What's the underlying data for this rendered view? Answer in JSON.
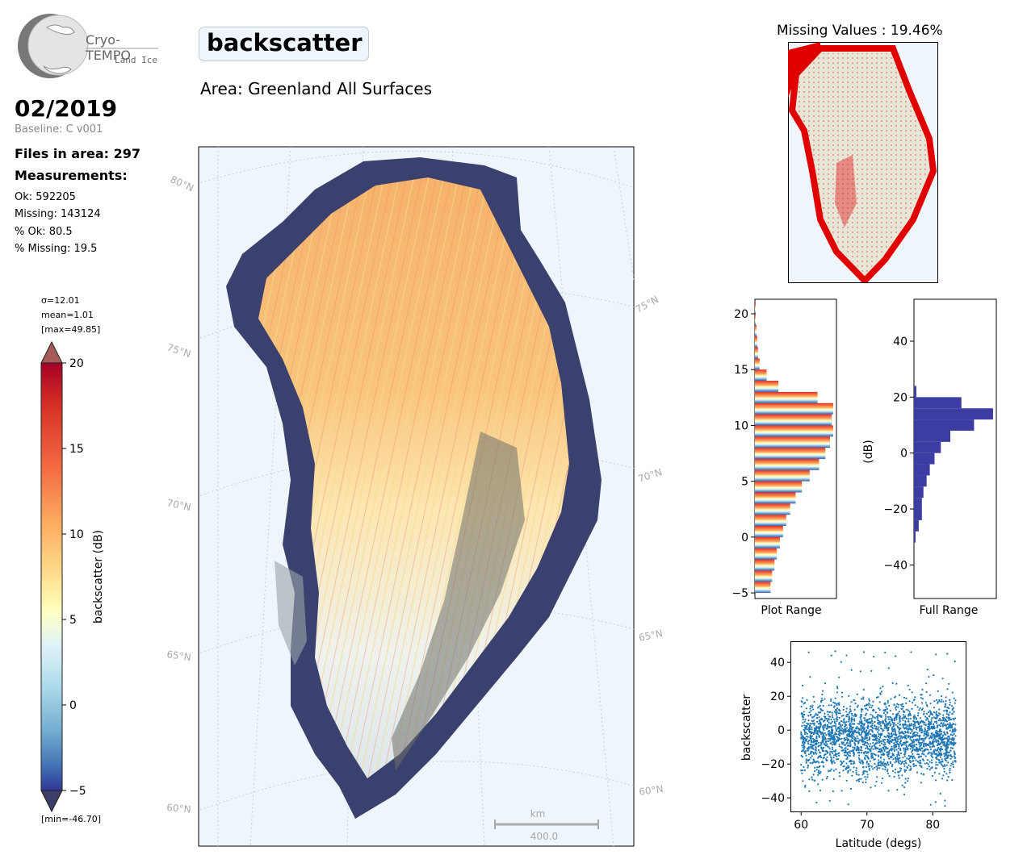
{
  "logo": {
    "name": "Cryo-TEMPO",
    "sub": "Land Ice"
  },
  "header": {
    "title": "backscatter",
    "area": "Area: Greenland All Surfaces",
    "period": "02/2019",
    "baseline": "Baseline: C v001"
  },
  "stats": {
    "files": "Files in area: 297",
    "measurements_label": "Measurements:",
    "ok": "Ok: 592205",
    "missing": "Missing: 143124",
    "pct_ok": "% Ok: 80.5",
    "pct_missing": "% Missing: 19.5"
  },
  "colorbar": {
    "sigma": "σ=12.01",
    "mean": "mean=1.01",
    "max": "[max=49.85]",
    "min": "[min=-46.70]",
    "label": "backscatter (dB)",
    "ticks": [
      "20",
      "15",
      "10",
      "5",
      "0",
      "−5"
    ]
  },
  "map": {
    "lat_labels_left": [
      "80°N",
      "75°N",
      "70°N",
      "65°N",
      "60°N"
    ],
    "lat_labels_right": [
      "75°N",
      "70°N",
      "65°N",
      "60°N"
    ],
    "scalebar_unit": "km",
    "scalebar_value": "400.0"
  },
  "missing_map": {
    "title": "Missing Values : 19.46%"
  },
  "chart_data": [
    {
      "type": "bar",
      "name": "plot-range-histogram",
      "orientation": "horizontal",
      "xlabel": "Plot Range",
      "ylim": [
        -5.5,
        21.3
      ],
      "yticks": [
        "20",
        "15",
        "10",
        "5",
        "0",
        "−5"
      ],
      "bins": [
        -5,
        -4,
        -3,
        -2,
        -1,
        0,
        1,
        2,
        3,
        4,
        5,
        6,
        7,
        8,
        9,
        10,
        11,
        12,
        13,
        14,
        15,
        16,
        17,
        18,
        19,
        20
      ],
      "counts": [
        20,
        22,
        25,
        28,
        32,
        36,
        40,
        45,
        52,
        60,
        70,
        82,
        90,
        96,
        100,
        98,
        100,
        80,
        30,
        15,
        6,
        4,
        3,
        2,
        1,
        1
      ]
    },
    {
      "type": "bar",
      "name": "full-range-histogram",
      "orientation": "horizontal",
      "xlabel": "Full Range",
      "ylabel": "(dB)",
      "ylim": [
        -52,
        55
      ],
      "yticks": [
        "40",
        "20",
        "0",
        "−20",
        "−40"
      ],
      "bins": [
        -32,
        -28,
        -24,
        -20,
        -16,
        -12,
        -8,
        -4,
        0,
        4,
        8,
        12,
        16,
        20
      ],
      "counts": [
        2,
        6,
        10,
        10,
        12,
        16,
        20,
        26,
        34,
        46,
        76,
        100,
        60,
        3
      ],
      "color": "#3c3ca2"
    },
    {
      "type": "scatter",
      "name": "latitude-scatter",
      "xlabel": "Latitude (degs)",
      "ylabel": "backscatter",
      "xlim": [
        58.5,
        85
      ],
      "ylim": [
        -48,
        52
      ],
      "xticks": [
        "60",
        "70",
        "80"
      ],
      "yticks": [
        "40",
        "20",
        "0",
        "−20",
        "−40"
      ],
      "x_range": [
        60,
        83.5
      ],
      "y_range": [
        -46.7,
        49.85
      ],
      "color": "#1f77b4"
    }
  ]
}
